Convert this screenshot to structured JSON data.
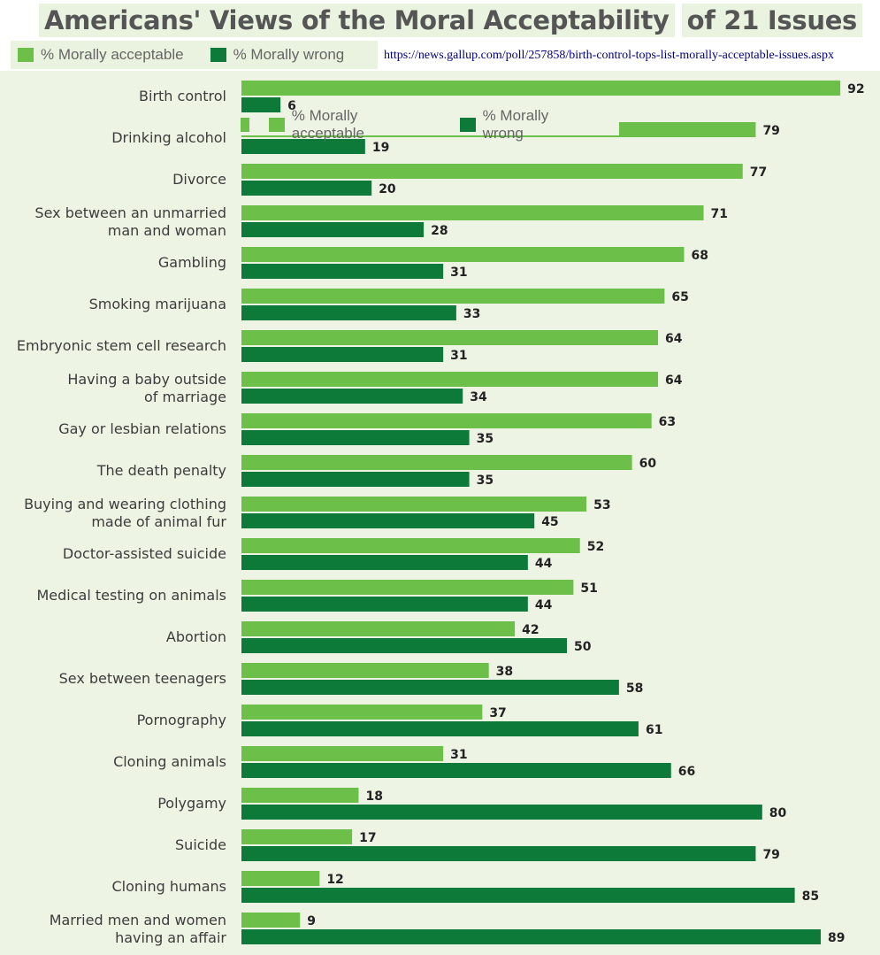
{
  "title": {
    "part1": "Americans' Views of the Moral Acceptability",
    "part2": "of 21 Issues"
  },
  "legend": {
    "acceptable": "% Morally acceptable",
    "wrong": "% Morally wrong"
  },
  "source_url": "https://news.gallup.com/poll/257858/birth-control-tops-list-morally-acceptable-issues.aspx",
  "colors": {
    "acceptable": "#6cc04a",
    "wrong": "#0d7a3a",
    "background": "#eef4e4"
  },
  "chart_data": {
    "type": "bar",
    "orientation": "horizontal",
    "title": "Americans' Views of the Moral Acceptability of 21 Issues",
    "xlim": [
      0,
      100
    ],
    "categories": [
      [
        "Birth control"
      ],
      [
        "Drinking alcohol"
      ],
      [
        "Divorce"
      ],
      [
        "Sex between an unmarried",
        "man and woman"
      ],
      [
        "Gambling"
      ],
      [
        "Smoking marijuana"
      ],
      [
        "Embryonic stem cell research"
      ],
      [
        "Having a baby outside",
        "of marriage"
      ],
      [
        "Gay or lesbian relations"
      ],
      [
        "The death penalty"
      ],
      [
        "Buying and wearing clothing",
        "made of animal fur"
      ],
      [
        "Doctor-assisted suicide"
      ],
      [
        "Medical testing on animals"
      ],
      [
        "Abortion"
      ],
      [
        "Sex between teenagers"
      ],
      [
        "Pornography"
      ],
      [
        "Cloning animals"
      ],
      [
        "Polygamy"
      ],
      [
        "Suicide"
      ],
      [
        "Cloning humans"
      ],
      [
        "Married men and women",
        "having an affair"
      ]
    ],
    "series": [
      {
        "name": "% Morally acceptable",
        "values": [
          92,
          79,
          77,
          71,
          68,
          65,
          64,
          64,
          63,
          60,
          53,
          52,
          51,
          42,
          38,
          37,
          31,
          18,
          17,
          12,
          9
        ]
      },
      {
        "name": "% Morally wrong",
        "values": [
          6,
          19,
          20,
          28,
          31,
          33,
          31,
          34,
          35,
          35,
          45,
          44,
          44,
          50,
          58,
          61,
          66,
          80,
          79,
          85,
          89
        ]
      }
    ]
  }
}
